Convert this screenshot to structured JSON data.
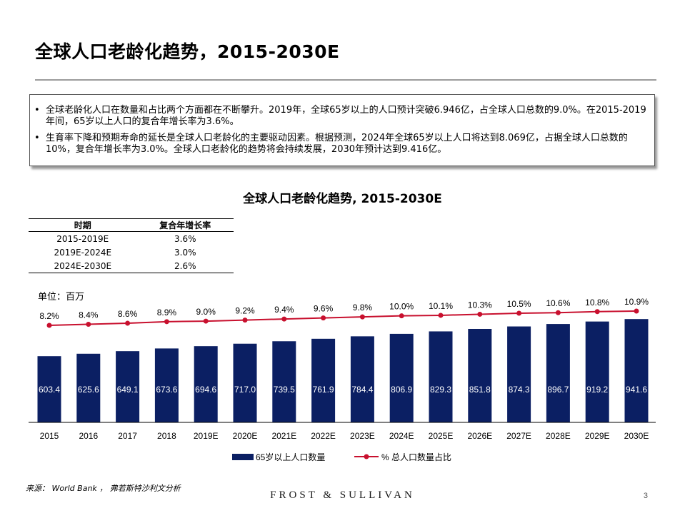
{
  "page": {
    "title": "全球人口老龄化趋势，2015-2030E",
    "page_number": "3"
  },
  "summary": {
    "bullet_symbol": "•",
    "bullets": [
      "全球老龄化人口在数量和占比两个方面都在不断攀升。2019年，全球65岁以上的人口预计突破6.946亿，占全球人口总数的9.0%。在2015-2019年间，65岁以上人口的复合年增长率为3.6%。",
      "生育率下降和预期寿命的延长是全球人口老龄化的主要驱动因素。根据预测，2024年全球65岁以上人口将达到8.069亿，占据全球人口总数的10%，复合年增长率为3.0%。全球人口老龄化的趋势将会持续发展，2030年预计达到9.416亿。"
    ]
  },
  "cagr_table": {
    "headers": [
      "时期",
      "复合年增长率"
    ],
    "rows": [
      [
        "2015-2019E",
        "3.6%"
      ],
      [
        "2019E-2024E",
        "3.0%"
      ],
      [
        "2024E-2030E",
        "2.6%"
      ]
    ]
  },
  "unit_label": "单位：百万",
  "chart_data": {
    "type": "bar",
    "title": "全球人口老龄化趋势, 2015-2030E",
    "categories": [
      "2015",
      "2016",
      "2017",
      "2018",
      "2019E",
      "2020E",
      "2021E",
      "2022E",
      "2023E",
      "2024E",
      "2025E",
      "2026E",
      "2027E",
      "2028E",
      "2029E",
      "2030E"
    ],
    "series": [
      {
        "name": "65岁以上人口数量",
        "type": "bar",
        "color": "#0b1f63",
        "values": [
          603.4,
          625.6,
          649.1,
          673.6,
          694.6,
          717.0,
          739.5,
          761.9,
          784.4,
          806.9,
          829.3,
          851.8,
          874.3,
          896.7,
          919.2,
          941.6
        ],
        "labels": [
          "603.4",
          "625.6",
          "649.1",
          "673.6",
          "694.6",
          "717.0",
          "739.5",
          "761.9",
          "784.4",
          "806.9",
          "829.3",
          "851.8",
          "874.3",
          "896.7",
          "919.2",
          "941.6"
        ]
      },
      {
        "name": "% 总人口数量占比",
        "type": "line",
        "color": "#c8102e",
        "values": [
          8.2,
          8.4,
          8.6,
          8.9,
          9.0,
          9.2,
          9.4,
          9.6,
          9.8,
          10.0,
          10.1,
          10.3,
          10.5,
          10.6,
          10.8,
          10.9
        ],
        "labels": [
          "8.2%",
          "8.4%",
          "8.6%",
          "8.9%",
          "9.0%",
          "9.2%",
          "9.4%",
          "9.6%",
          "9.8%",
          "10.0%",
          "10.1%",
          "10.3%",
          "10.5%",
          "10.6%",
          "10.8%",
          "10.9%"
        ]
      }
    ],
    "legend_position": "bottom",
    "grid": false
  },
  "footer": {
    "source": "来源：  World Bank ，  弗若斯特沙利文分析",
    "brand": "FROST & SULLIVAN"
  }
}
